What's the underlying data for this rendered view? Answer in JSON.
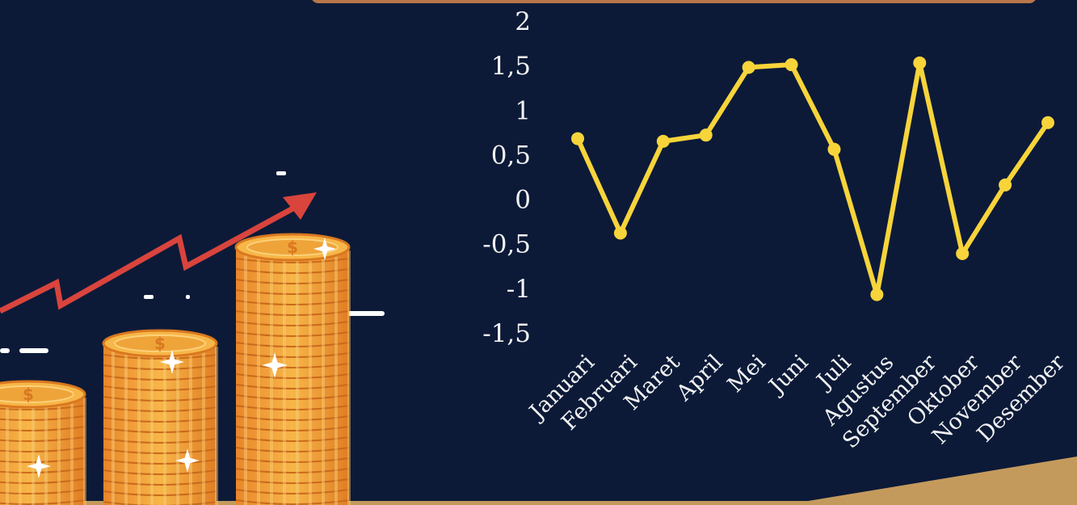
{
  "colors": {
    "background": "#0c1a38",
    "line": "#f7d43a",
    "axis_text": "#f2f2f2",
    "arrow": "#d9443d",
    "coin": "#f1a83a",
    "ground": "#c49a5c",
    "top_bar": "#b8764a"
  },
  "illustration": {
    "icons": [
      "coin-stack-icon",
      "growth-arrow-icon",
      "sparkle-icon",
      "dollar-sign-icon"
    ]
  },
  "chart_data": {
    "type": "line",
    "title": "",
    "xlabel": "",
    "ylabel": "",
    "ylim": [
      -1.5,
      2
    ],
    "yticks": [
      "2",
      "1,5",
      "1",
      "0,5",
      "0",
      "-0,5",
      "-1",
      "-1,5"
    ],
    "ytick_values": [
      2,
      1.5,
      1,
      0.5,
      0,
      -0.5,
      -1,
      -1.5
    ],
    "categories": [
      "Januari",
      "Februari",
      "Maret",
      "April",
      "Mei",
      "Juni",
      "Juli",
      "Agustus",
      "September",
      "Oktober",
      "November",
      "Desember"
    ],
    "series": [
      {
        "values": [
          0.68,
          -0.38,
          0.65,
          0.72,
          1.48,
          1.51,
          0.56,
          -1.07,
          1.53,
          -0.61,
          0.16,
          0.86
        ]
      }
    ],
    "grid": false,
    "legend": "none"
  }
}
